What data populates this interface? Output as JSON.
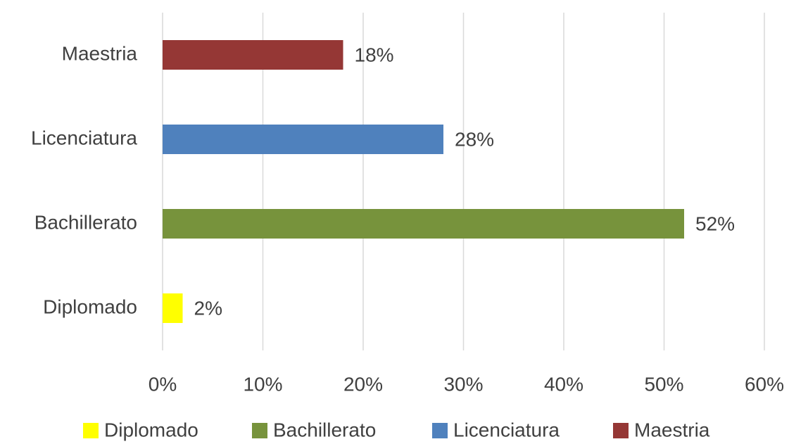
{
  "chart_data": {
    "type": "hbar",
    "categories": [
      "Diplomado",
      "Bachillerato",
      "Licenciatura",
      "Maestria"
    ],
    "values": [
      2,
      52,
      28,
      18
    ],
    "value_labels": [
      "2%",
      "52%",
      "28%",
      "18%"
    ],
    "colors": [
      "#ffff00",
      "#77933c",
      "#4f81bd",
      "#953735"
    ],
    "xlim": [
      0,
      60
    ],
    "xticks": [
      {
        "value": 0,
        "label": "0%"
      },
      {
        "value": 10,
        "label": "10%"
      },
      {
        "value": 20,
        "label": "20%"
      },
      {
        "value": 30,
        "label": "30%"
      },
      {
        "value": 40,
        "label": "40%"
      },
      {
        "value": 50,
        "label": "50%"
      },
      {
        "value": 60,
        "label": "60%"
      }
    ],
    "grid": true,
    "legend": "bottom"
  }
}
